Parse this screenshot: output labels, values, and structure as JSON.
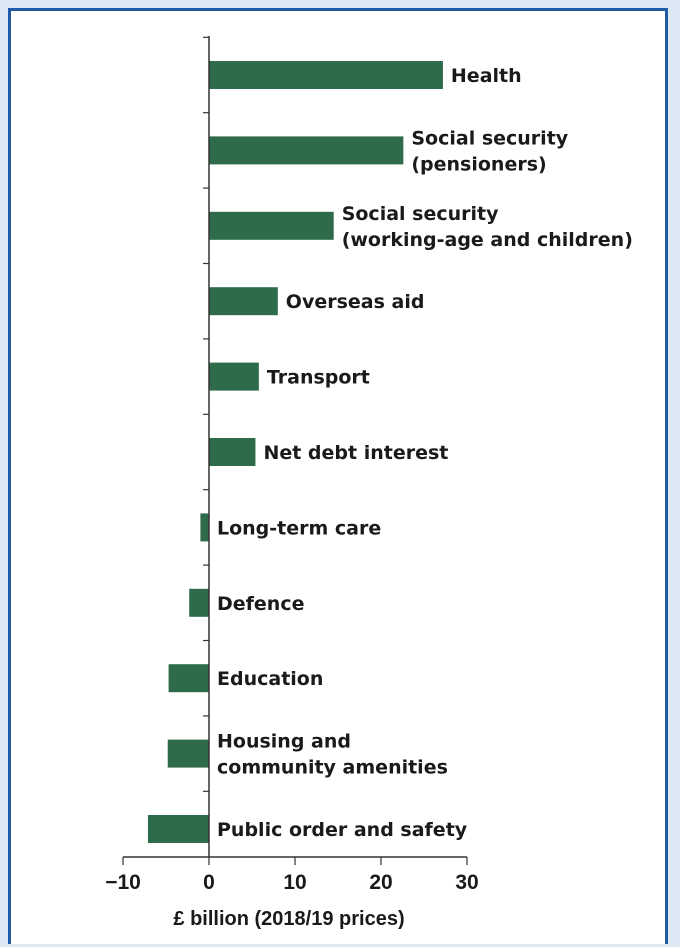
{
  "chart_data": {
    "type": "bar",
    "orientation": "horizontal",
    "categories": [
      [
        "Health"
      ],
      [
        "Social security",
        "(pensioners)"
      ],
      [
        "Social security",
        "(working-age and children)"
      ],
      [
        "Overseas aid"
      ],
      [
        "Transport"
      ],
      [
        "Net debt interest"
      ],
      [
        "Long-term care"
      ],
      [
        "Defence"
      ],
      [
        "Education"
      ],
      [
        "Housing and",
        "community amenities"
      ],
      [
        "Public order and safety"
      ]
    ],
    "values": [
      27.2,
      22.6,
      14.5,
      8.0,
      5.8,
      5.4,
      -1.0,
      -2.3,
      -4.7,
      -4.8,
      -7.1
    ],
    "xlabel": "£ billion (2018/19 prices)",
    "xlim": [
      -10,
      30
    ],
    "xticks": [
      "−10",
      "0",
      "10",
      "20",
      "30"
    ],
    "xtick_values": [
      -10,
      0,
      10,
      20,
      30
    ],
    "bar_color": "#2e6b4a",
    "grid": false
  }
}
